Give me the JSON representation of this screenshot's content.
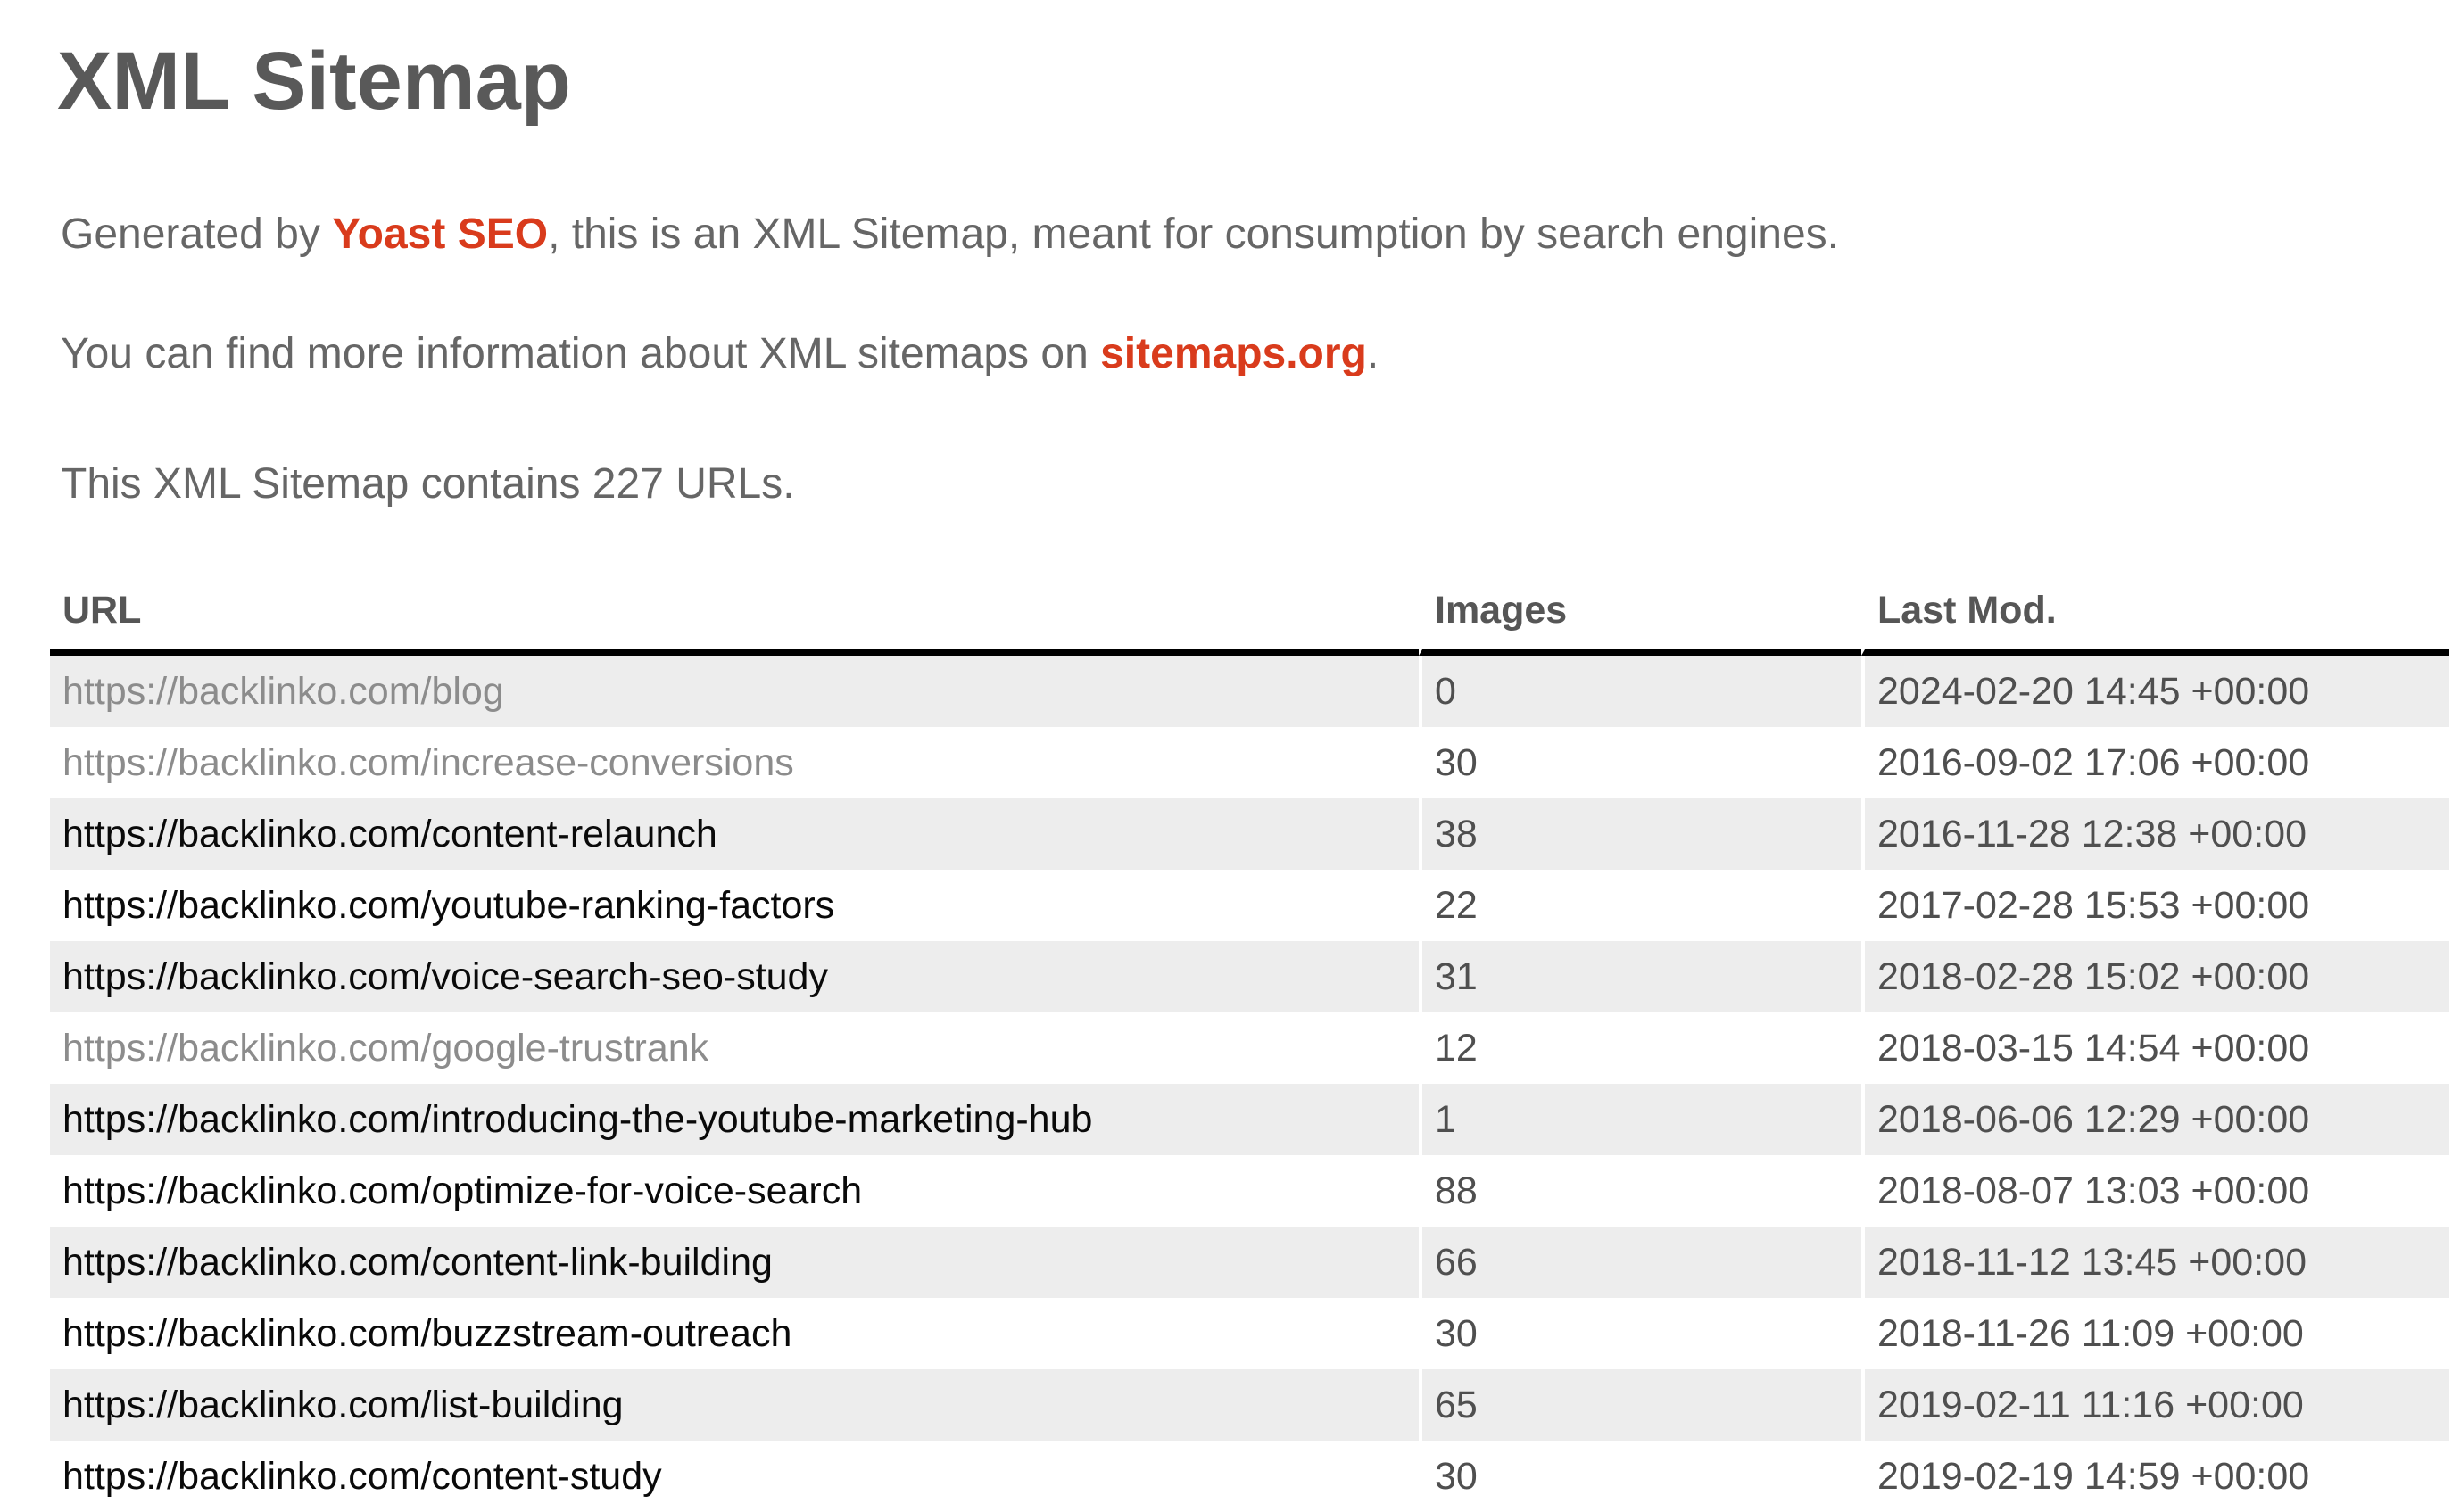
{
  "page": {
    "title": "XML Sitemap"
  },
  "intro": {
    "p1_before": "Generated by ",
    "p1_link": "Yoast SEO",
    "p1_after": ", this is an XML Sitemap, meant for consumption by search engines.",
    "p2_before": "You can find more information about XML sitemaps on ",
    "p2_link": "sitemaps.org",
    "p2_after": ".",
    "count_line": "This XML Sitemap contains 227 URLs."
  },
  "colors": {
    "accent_red": "#d93b1c",
    "heading_gray": "#595959",
    "body_gray": "#666666",
    "value_gray": "#4f4f4f",
    "visited_link_gray": "#8c8c8c",
    "link_black": "#0a0a0a",
    "row_alt_bg": "#ededed",
    "header_border": "#000000"
  },
  "table": {
    "columns": [
      "URL",
      "Images",
      "Last Mod."
    ],
    "rows": [
      {
        "url": "https://backlinko.com/blog",
        "images": "0",
        "lastmod": "2024-02-20 14:45 +00:00",
        "visited": true
      },
      {
        "url": "https://backlinko.com/increase-conversions",
        "images": "30",
        "lastmod": "2016-09-02 17:06 +00:00",
        "visited": true
      },
      {
        "url": "https://backlinko.com/content-relaunch",
        "images": "38",
        "lastmod": "2016-11-28 12:38 +00:00",
        "visited": false
      },
      {
        "url": "https://backlinko.com/youtube-ranking-factors",
        "images": "22",
        "lastmod": "2017-02-28 15:53 +00:00",
        "visited": false
      },
      {
        "url": "https://backlinko.com/voice-search-seo-study",
        "images": "31",
        "lastmod": "2018-02-28 15:02 +00:00",
        "visited": false
      },
      {
        "url": "https://backlinko.com/google-trustrank",
        "images": "12",
        "lastmod": "2018-03-15 14:54 +00:00",
        "visited": true
      },
      {
        "url": "https://backlinko.com/introducing-the-youtube-marketing-hub",
        "images": "1",
        "lastmod": "2018-06-06 12:29 +00:00",
        "visited": false
      },
      {
        "url": "https://backlinko.com/optimize-for-voice-search",
        "images": "88",
        "lastmod": "2018-08-07 13:03 +00:00",
        "visited": false
      },
      {
        "url": "https://backlinko.com/content-link-building",
        "images": "66",
        "lastmod": "2018-11-12 13:45 +00:00",
        "visited": false
      },
      {
        "url": "https://backlinko.com/buzzstream-outreach",
        "images": "30",
        "lastmod": "2018-11-26 11:09 +00:00",
        "visited": false
      },
      {
        "url": "https://backlinko.com/list-building",
        "images": "65",
        "lastmod": "2019-02-11 11:16 +00:00",
        "visited": false
      },
      {
        "url": "https://backlinko.com/content-study",
        "images": "30",
        "lastmod": "2019-02-19 14:59 +00:00",
        "visited": false
      }
    ]
  }
}
